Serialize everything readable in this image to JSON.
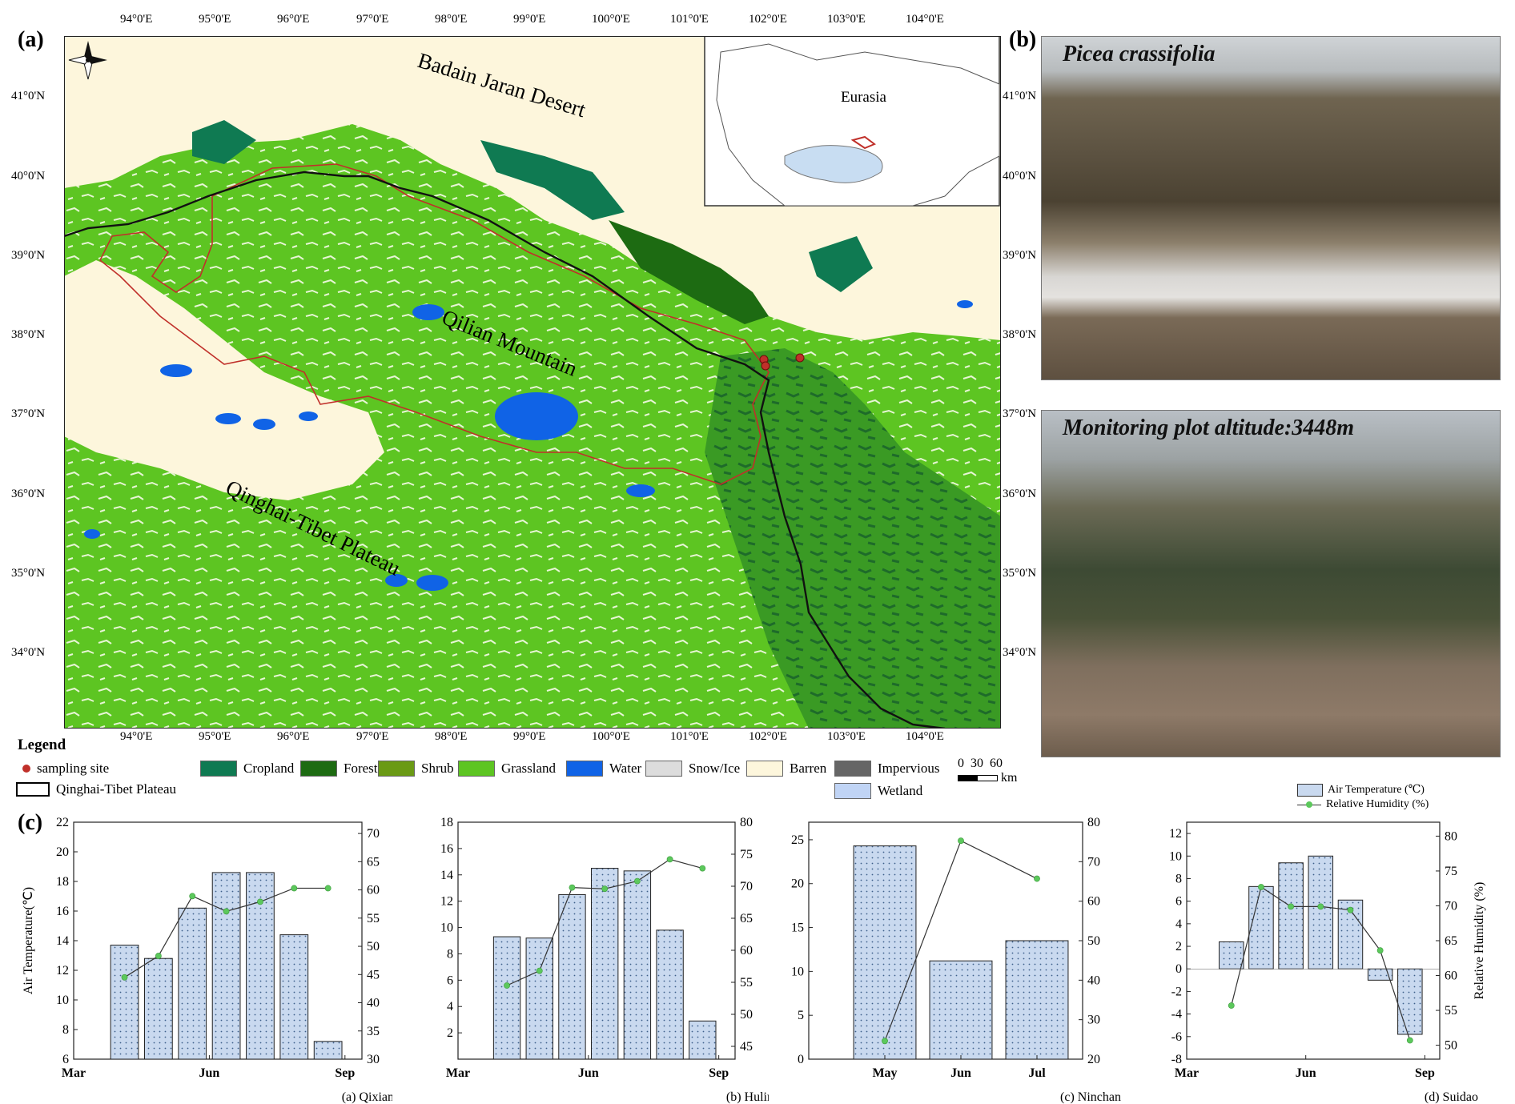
{
  "panel_labels": {
    "a": "(a)",
    "b": "(b)",
    "c": "(c)"
  },
  "map": {
    "lon_ticks": [
      "94°0'E",
      "95°0'E",
      "96°0'E",
      "97°0'E",
      "98°0'E",
      "99°0'E",
      "100°0'E",
      "101°0'E",
      "102°0'E",
      "103°0'E",
      "104°0'E"
    ],
    "lat_ticks": [
      "41°0'N",
      "40°0'N",
      "39°0'N",
      "38°0'N",
      "37°0'N",
      "36°0'N",
      "35°0'N",
      "34°0'N"
    ],
    "lat_ticks_right": [
      "41°0'N",
      "40°0'N",
      "39°0'N",
      "38°0'N",
      "37°0'N",
      "36°0'N",
      "35°0'N",
      "34°0'N"
    ],
    "labels": {
      "badain": "Badain Jaran Desert",
      "qilian": "Qilian Mountain",
      "qinghai": "Qinghai-Tibet Plateau",
      "inset": "Eurasia"
    },
    "colors": {
      "barren": "#fdf6dc",
      "grassland": "#5dc522",
      "forest": "#1f7a3a",
      "cropland": "#0f7a52",
      "water": "#1063e6",
      "snow": "#e0e0e0",
      "boundary": "#c0302a"
    }
  },
  "legend": {
    "title": "Legend",
    "items": [
      {
        "label": "sampling site",
        "color": "#c0302a",
        "kind": "dot"
      },
      {
        "label": "Qinghai-Tibet Plateau",
        "color": "#ffffff",
        "kind": "box"
      },
      {
        "label": "Cropland",
        "color": "#0f7a52",
        "kind": "swatch"
      },
      {
        "label": "Forest",
        "color": "#1d6b12",
        "kind": "swatch"
      },
      {
        "label": "Shrub",
        "color": "#6a9a15",
        "kind": "swatch"
      },
      {
        "label": "Grassland",
        "color": "#5dc522",
        "kind": "swatch"
      },
      {
        "label": "Water",
        "color": "#1063e6",
        "kind": "swatch"
      },
      {
        "label": "Snow/Ice",
        "color": "#dcdcdc",
        "kind": "swatch"
      },
      {
        "label": "Barren",
        "color": "#fdf6dc",
        "kind": "swatch"
      },
      {
        "label": "Impervious",
        "color": "#666666",
        "kind": "swatch"
      },
      {
        "label": "Wetland",
        "color": "#c0d4f5",
        "kind": "swatch"
      }
    ],
    "scale_numbers": "0  30  60",
    "scale_unit": "km"
  },
  "photos": {
    "top_caption": "Picea crassifolia",
    "bottom_caption": "Monitoring plot altitude:3448m"
  },
  "chart_legend": {
    "bar_label": "Air Temperature (℃)",
    "line_label": "Relative Humidity (%)"
  },
  "chart_data": [
    {
      "type": "bar",
      "title": "(a) Qixiang",
      "ylabel": "Air Temperature(℃)",
      "y2label": "",
      "ylim": [
        6,
        22
      ],
      "y2lim": [
        30,
        72
      ],
      "yticks": [
        "6",
        "8",
        "10",
        "12",
        "14",
        "16",
        "18",
        "20",
        "22"
      ],
      "y2ticks": [
        "30",
        "35",
        "40",
        "45",
        "50",
        "55",
        "60",
        "65",
        "70"
      ],
      "xlim": [
        0,
        8.5
      ],
      "xticks": [
        {
          "pos": 0,
          "label": "Mar"
        },
        {
          "pos": 4,
          "label": "Jun"
        },
        {
          "pos": 8,
          "label": "Sep"
        }
      ],
      "bars": {
        "x": [
          1.5,
          2.5,
          3.5,
          4.5,
          5.5,
          6.5,
          7.5
        ],
        "values": [
          13.7,
          12.8,
          16.2,
          18.6,
          18.6,
          14.4,
          7.2
        ]
      },
      "line": {
        "x": [
          1.5,
          2.5,
          3.5,
          4.5,
          5.5,
          6.5,
          7.5
        ],
        "values": [
          44.5,
          48.3,
          58.9,
          56.2,
          57.9,
          60.3,
          60.3
        ]
      }
    },
    {
      "type": "bar",
      "title": "(b) Hulin",
      "ylabel": "",
      "y2label": "",
      "ylim": [
        0,
        18
      ],
      "y2lim": [
        43,
        80
      ],
      "yticks": [
        "2",
        "4",
        "6",
        "8",
        "10",
        "12",
        "14",
        "16",
        "18"
      ],
      "y2ticks": [
        "45",
        "50",
        "55",
        "60",
        "65",
        "70",
        "75",
        "80"
      ],
      "xlim": [
        0,
        8.5
      ],
      "xticks": [
        {
          "pos": 0,
          "label": "Mar"
        },
        {
          "pos": 4,
          "label": "Jun"
        },
        {
          "pos": 8,
          "label": "Sep"
        }
      ],
      "bars": {
        "x": [
          1.5,
          2.5,
          3.5,
          4.5,
          5.5,
          6.5,
          7.5
        ],
        "values": [
          9.3,
          9.2,
          12.5,
          14.5,
          14.3,
          9.8,
          2.9
        ]
      },
      "line": {
        "x": [
          1.5,
          2.5,
          3.5,
          4.5,
          5.5,
          6.5,
          7.5
        ],
        "values": [
          54.5,
          56.8,
          69.8,
          69.6,
          70.8,
          74.2,
          72.8
        ]
      }
    },
    {
      "type": "bar",
      "title": "(c) Ninchan",
      "ylabel": "",
      "y2label": "",
      "ylim": [
        0,
        27
      ],
      "y2lim": [
        20,
        80
      ],
      "yticks": [
        "0",
        "5",
        "10",
        "15",
        "20",
        "25"
      ],
      "y2ticks": [
        "20",
        "30",
        "40",
        "50",
        "60",
        "70",
        "80"
      ],
      "xlim": [
        0,
        3.6
      ],
      "xticks": [
        {
          "pos": 1,
          "label": "May"
        },
        {
          "pos": 2,
          "label": "Jun"
        },
        {
          "pos": 3,
          "label": "Jul"
        }
      ],
      "bars": {
        "x": [
          1,
          2,
          3
        ],
        "values": [
          24.3,
          11.2,
          13.5
        ]
      },
      "line": {
        "x": [
          1,
          2,
          3
        ],
        "values": [
          24.6,
          75.3,
          65.7
        ]
      }
    },
    {
      "type": "bar",
      "title": "(d) Suidao",
      "ylabel": "",
      "y2label": "Relative Humidity (%)",
      "ylim": [
        -8,
        13
      ],
      "y2lim": [
        48,
        82
      ],
      "yticks": [
        "-8",
        "-6",
        "-4",
        "-2",
        "0",
        "2",
        "4",
        "6",
        "8",
        "10",
        "12"
      ],
      "y2ticks": [
        "50",
        "55",
        "60",
        "65",
        "70",
        "75",
        "80"
      ],
      "xlim": [
        0,
        8.5
      ],
      "xticks": [
        {
          "pos": 0,
          "label": "Mar"
        },
        {
          "pos": 4,
          "label": "Jun"
        },
        {
          "pos": 8,
          "label": "Sep"
        }
      ],
      "bars": {
        "x": [
          1.5,
          2.5,
          3.5,
          4.5,
          5.5,
          6.5,
          7.5
        ],
        "values": [
          2.4,
          7.3,
          9.4,
          10.0,
          6.1,
          -1.0,
          -5.8
        ]
      },
      "line": {
        "x": [
          1.5,
          2.5,
          3.5,
          4.5,
          5.5,
          6.5,
          7.5
        ],
        "values": [
          55.7,
          72.7,
          69.9,
          69.9,
          69.4,
          63.6,
          50.7
        ]
      }
    }
  ]
}
